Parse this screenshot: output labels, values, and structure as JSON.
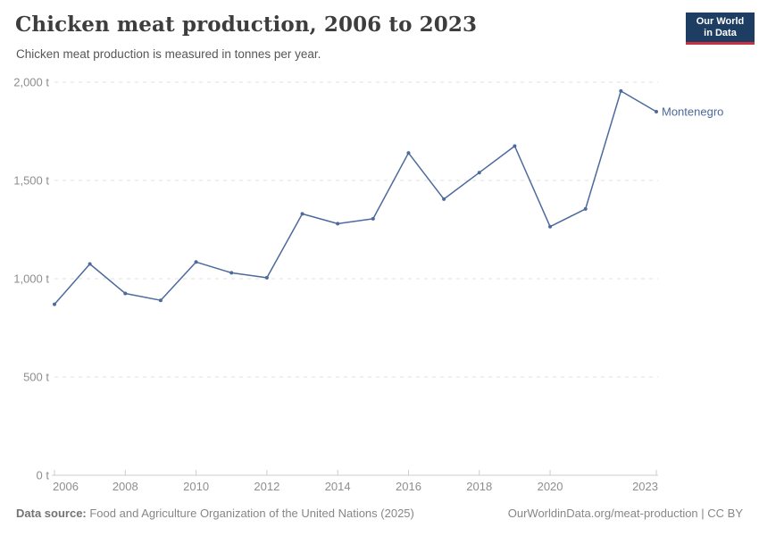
{
  "header": {
    "title": "Chicken meat production, 2006 to 2023",
    "subtitle": "Chicken meat production is measured in tonnes per year."
  },
  "logo": {
    "line1": "Our World",
    "line2": "in Data",
    "bg_color": "#1d3d63",
    "accent_color": "#cb303e"
  },
  "footer": {
    "datasource_label": "Data source:",
    "datasource_text": " Food and Agriculture Organization of the United Nations (2025)",
    "link_text": "OurWorldinData.org/meat-production | CC BY"
  },
  "chart_data": {
    "type": "line",
    "title": "Chicken meat production, 2006 to 2023",
    "xlabel": "",
    "ylabel": "",
    "x": [
      2006,
      2007,
      2008,
      2009,
      2010,
      2011,
      2012,
      2013,
      2014,
      2015,
      2016,
      2017,
      2018,
      2019,
      2020,
      2021,
      2022,
      2023
    ],
    "series": [
      {
        "name": "Montenegro",
        "color": "#4c6a9c",
        "values": [
          870,
          1075,
          925,
          890,
          1085,
          1030,
          1005,
          1330,
          1280,
          1305,
          1640,
          1405,
          1540,
          1675,
          1265,
          1355,
          1955,
          1850
        ]
      }
    ],
    "ylim": [
      0,
      2000
    ],
    "yticks": [
      0,
      500,
      1000,
      1500,
      2000
    ],
    "ytick_labels": [
      "0 t",
      "500 t",
      "1,000 t",
      "1,500 t",
      "2,000 t"
    ],
    "xticks": [
      2006,
      2008,
      2010,
      2012,
      2014,
      2016,
      2018,
      2020,
      2023
    ],
    "grid": "horizontal-dashed",
    "legend_position": "end-of-line-label",
    "axis_text_color": "#8e8e8e",
    "grid_color": "#e0e0e0",
    "axis_line_color": "#cccccc"
  }
}
